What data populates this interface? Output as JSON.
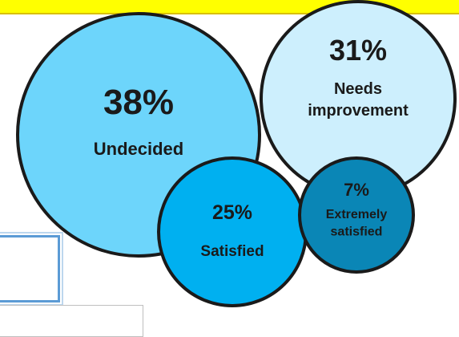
{
  "chart_data": {
    "type": "bubble",
    "title": "",
    "series": [
      {
        "label": "Undecided",
        "value": 38,
        "display": "38%",
        "label_lines": [
          "Undecided"
        ],
        "color": "#6dd5fb"
      },
      {
        "label": "Needs improvement",
        "value": 31,
        "display": "31%",
        "label_lines": [
          "Needs",
          "improvement"
        ],
        "color": "#cdeffd"
      },
      {
        "label": "Satisfied",
        "value": 25,
        "display": "25%",
        "label_lines": [
          "Satisfied"
        ],
        "color": "#00b0f0"
      },
      {
        "label": "Extremely satisfied",
        "value": 7,
        "display": "7%",
        "label_lines": [
          "Extremely",
          "satisfied"
        ],
        "color": "#0a86b6"
      }
    ],
    "outline_color": "#1a1a1a"
  },
  "decor": {
    "top_strip_color": "#ffff00",
    "box_border_color": "#5b9bd5"
  }
}
